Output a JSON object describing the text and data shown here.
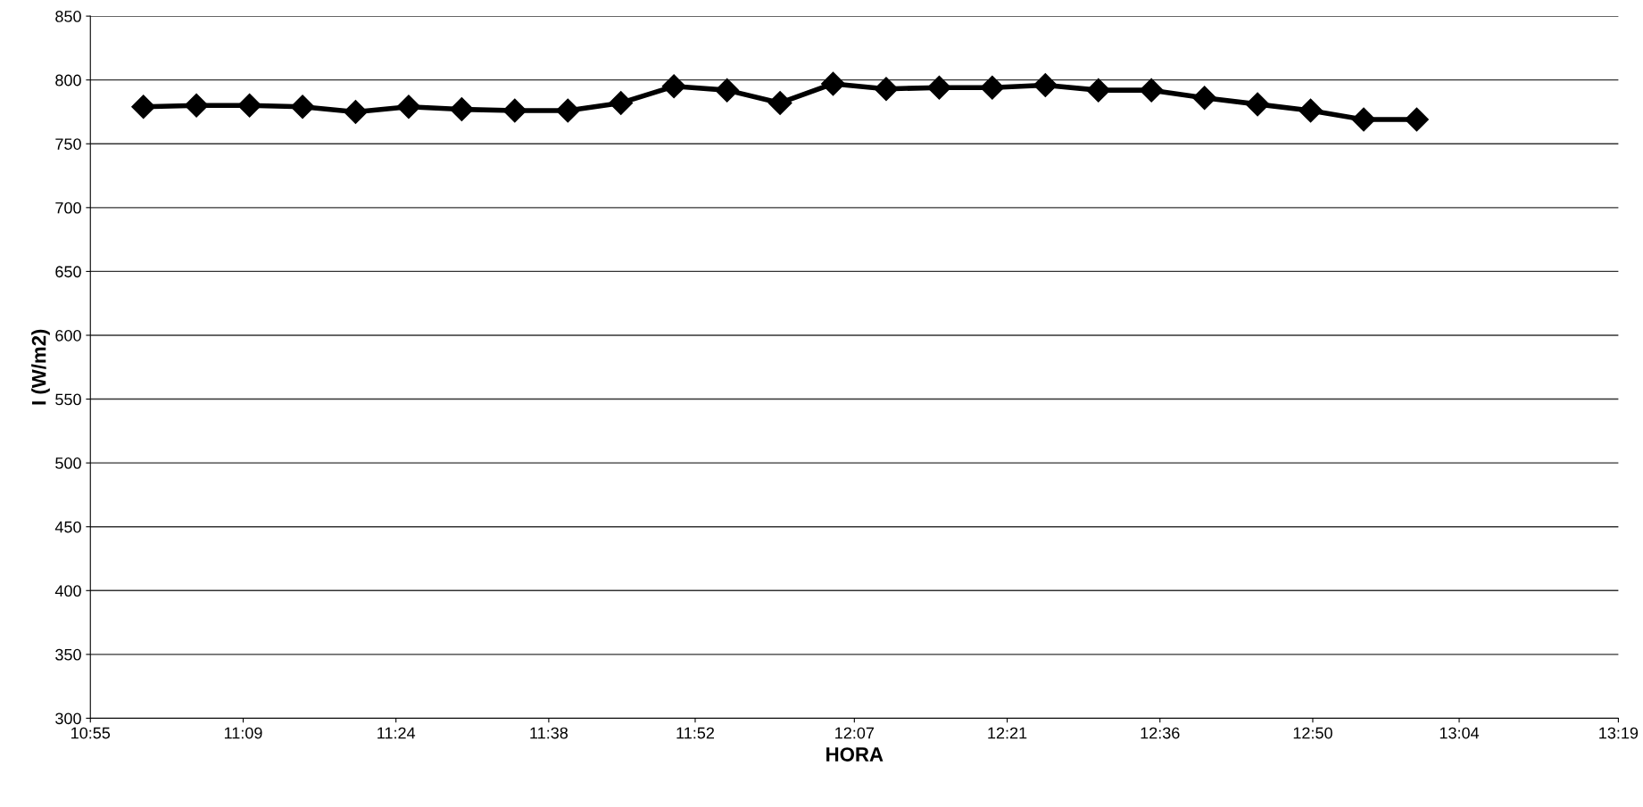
{
  "chart_data": {
    "type": "line",
    "xlabel": "HORA",
    "ylabel": "I (W/m2)",
    "x": [
      11.0,
      11.0833,
      11.1667,
      11.25,
      11.3333,
      11.4167,
      11.5,
      11.5833,
      11.6667,
      11.75,
      11.8333,
      11.9167,
      12.0,
      12.0833,
      12.1667,
      12.25,
      12.3333,
      12.4167,
      12.5,
      12.5833,
      12.6667,
      12.75,
      12.8333,
      12.9167,
      13.0
    ],
    "series": [
      {
        "color": "#000000",
        "values": [
          779,
          780,
          780,
          779,
          775,
          779,
          777,
          776,
          776,
          782,
          795,
          792,
          782,
          797,
          793,
          794,
          794,
          796,
          792,
          792,
          786,
          781,
          776,
          769,
          769
        ]
      }
    ],
    "xlim": [
      10.9167,
      13.3167
    ],
    "xticks": [
      {
        "value": 10.9167,
        "label": "10:55"
      },
      {
        "value": 11.1567,
        "label": "11:09"
      },
      {
        "value": 11.3967,
        "label": "11:24"
      },
      {
        "value": 11.6367,
        "label": "11:38"
      },
      {
        "value": 11.8667,
        "label": "11:52"
      },
      {
        "value": 12.1167,
        "label": "12:07"
      },
      {
        "value": 12.3567,
        "label": "12:21"
      },
      {
        "value": 12.5967,
        "label": "12:36"
      },
      {
        "value": 12.8367,
        "label": "12:50"
      },
      {
        "value": 13.0667,
        "label": "13:04"
      },
      {
        "value": 13.3167,
        "label": "13:19"
      }
    ],
    "ylim": [
      300,
      850
    ],
    "yticks": [
      300,
      350,
      400,
      450,
      500,
      550,
      600,
      650,
      700,
      750,
      800,
      850
    ],
    "grid": "y",
    "marker": "diamond",
    "line_style": "solid"
  }
}
